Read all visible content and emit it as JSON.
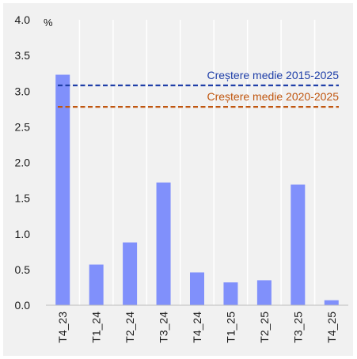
{
  "chart_data": {
    "type": "bar",
    "unit_label": "%",
    "categories": [
      "T4_23",
      "T1_24",
      "T2_24",
      "T3_24",
      "T4_24",
      "T1_25",
      "T2_25",
      "T3_25",
      "T4_25"
    ],
    "values": [
      3.23,
      0.57,
      0.88,
      1.72,
      0.46,
      0.32,
      0.35,
      1.69,
      0.07
    ],
    "ylim": [
      0,
      4.0
    ],
    "yticks": [
      "0.0",
      "0.5",
      "1.0",
      "1.5",
      "2.0",
      "2.5",
      "3.0",
      "3.5",
      "4.0"
    ],
    "grid": "vertical",
    "bar_color": "#8090fb",
    "reference_lines": [
      {
        "label": "Creștere medie 2015-2025",
        "value": 3.08,
        "color": "#1f3fa8",
        "style": "dashed"
      },
      {
        "label": "Creștere medie 2020-2025",
        "value": 2.78,
        "color": "#c0560f",
        "style": "dashed"
      }
    ]
  }
}
